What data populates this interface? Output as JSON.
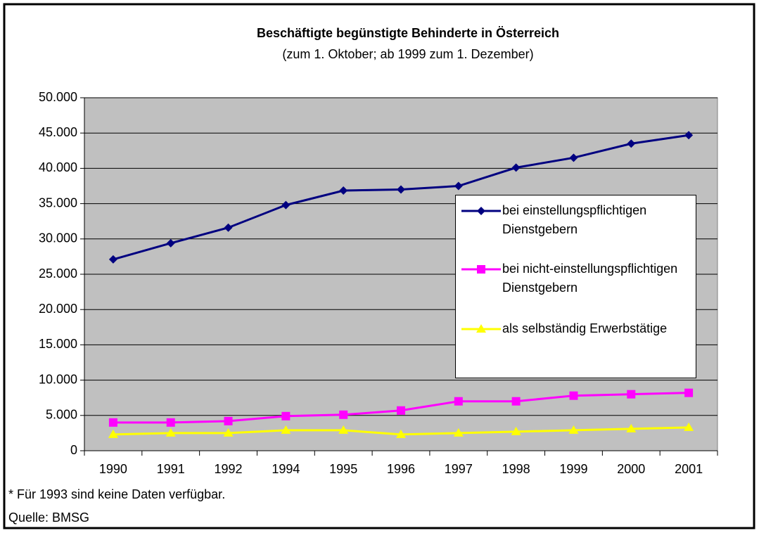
{
  "chart_data": {
    "type": "line",
    "title": "Beschäftigte begünstigte Behinderte in Österreich",
    "subtitle": "(zum 1. Oktober; ab 1999 zum 1. Dezember)",
    "categories": [
      "1990",
      "1991",
      "1992",
      "1994",
      "1995",
      "1996",
      "1997",
      "1998",
      "1999",
      "2000",
      "2001"
    ],
    "series": [
      {
        "name": "bei einstellungspflichtigen Dienstgebern",
        "color": "#000080",
        "marker": "diamond",
        "values": [
          27100,
          29400,
          31600,
          34800,
          36850,
          37000,
          37500,
          40100,
          41500,
          43500,
          44700
        ]
      },
      {
        "name": "bei nicht-einstellungspflichtigen Dienstgebern",
        "color": "#ff00ff",
        "marker": "square",
        "values": [
          4000,
          4000,
          4200,
          4900,
          5100,
          5700,
          7000,
          7000,
          7800,
          8000,
          8200
        ]
      },
      {
        "name": "als selbständig Erwerbstätige",
        "color": "#ffff00",
        "marker": "triangle",
        "values": [
          2300,
          2500,
          2500,
          2900,
          2900,
          2300,
          2500,
          2700,
          2900,
          3100,
          3300
        ]
      }
    ],
    "ylim": [
      0,
      50000
    ],
    "yticks": [
      0,
      {
        "value": 5000,
        "label": "5.000"
      },
      {
        "value": 10000,
        "label": "10.000"
      },
      {
        "value": 15000,
        "label": "15.000"
      },
      {
        "value": 20000,
        "label": "20.000"
      },
      {
        "value": 25000,
        "label": "25.000"
      },
      {
        "value": 30000,
        "label": "30.000"
      },
      {
        "value": 35000,
        "label": "35.000"
      },
      {
        "value": 40000,
        "label": "40.000"
      },
      {
        "value": 45000,
        "label": "45.000"
      },
      {
        "value": 50000,
        "label": "50.000"
      }
    ],
    "grid": true,
    "legend": "right",
    "notes": [
      "* Für 1993 sind keine Daten verfügbar.",
      "Quelle: BMSG"
    ]
  }
}
